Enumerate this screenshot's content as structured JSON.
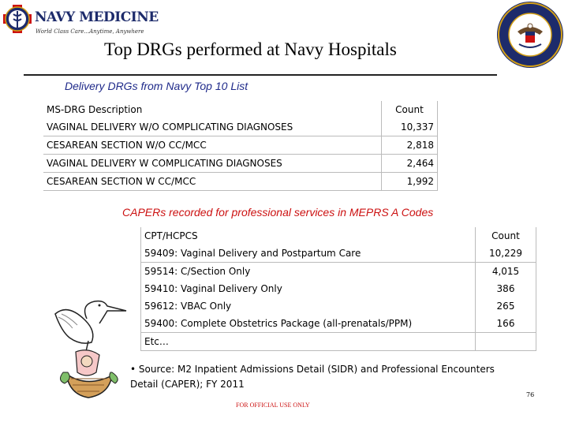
{
  "header": {
    "logo_text": "NAVY MEDICINE",
    "logo_tagline": "World Class Care...Anytime, Anywhere",
    "title": "Top DRGs performed at Navy Hospitals"
  },
  "drg_section": {
    "subtitle": "Delivery DRGs from Navy Top 10 List",
    "col_description": "MS-DRG Description",
    "col_count": "Count",
    "rows": [
      {
        "description": "VAGINAL DELIVERY W/O COMPLICATING DIAGNOSES",
        "count": "10,337"
      },
      {
        "description": "CESAREAN SECTION W/O CC/MCC",
        "count": "2,818"
      },
      {
        "description": "VAGINAL DELIVERY W COMPLICATING DIAGNOSES",
        "count": "2,464"
      },
      {
        "description": "CESAREAN SECTION W CC/MCC",
        "count": "1,992"
      }
    ]
  },
  "caper_section": {
    "subtitle": "CAPERs recorded for professional services in MEPRS A Codes",
    "col_code": "CPT/HCPCS",
    "col_count": "Count",
    "rows": [
      {
        "code": "59409:  Vaginal Delivery and Postpartum Care",
        "count": "10,229"
      },
      {
        "code": "59514:  C/Section Only",
        "count": "4,015"
      },
      {
        "code": "59410:  Vaginal Delivery Only",
        "count": "386"
      },
      {
        "code": "59612:  VBAC Only",
        "count": "265"
      },
      {
        "code": "59400:  Complete Obstetrics Package (all-prenatals/PPM)",
        "count": "166"
      },
      {
        "code": "Etc…",
        "count": ""
      }
    ]
  },
  "source_note": "• Source:  M2 Inpatient Admissions Detail (SIDR) and Professional Encounters Detail (CAPER); FY 2011",
  "page_number": "76",
  "footer": "FOR OFFICIAL USE ONLY",
  "colors": {
    "title_blue": "#1f2a8a",
    "accent_red": "#cc1111",
    "logo_navy": "#1d2b6b"
  }
}
